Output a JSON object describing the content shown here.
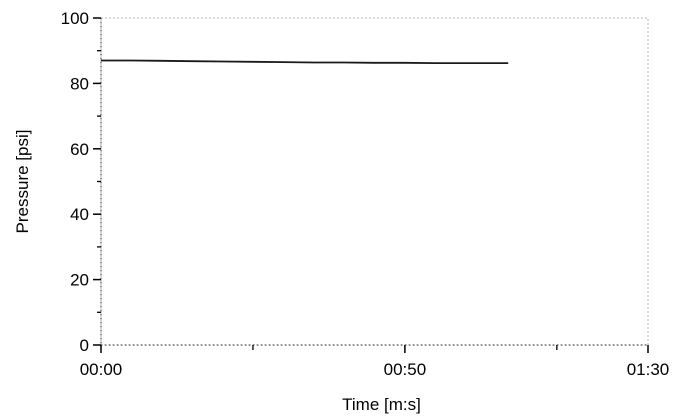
{
  "chart_data": {
    "type": "line",
    "title": "",
    "xlabel": "Time [m:s]",
    "ylabel": "Pressure [psi]",
    "xlim": [
      0,
      90
    ],
    "ylim": [
      0,
      100
    ],
    "x_ticks": [
      {
        "value": 0,
        "label": "00:00"
      },
      {
        "value": 50,
        "label": "00:50"
      },
      {
        "value": 90,
        "label": "01:30"
      }
    ],
    "x_minor_ticks": [
      25,
      75
    ],
    "y_ticks": [
      {
        "value": 0,
        "label": "0"
      },
      {
        "value": 20,
        "label": "20"
      },
      {
        "value": 40,
        "label": "40"
      },
      {
        "value": 60,
        "label": "60"
      },
      {
        "value": 80,
        "label": "80"
      },
      {
        "value": 100,
        "label": "100"
      }
    ],
    "y_minor_ticks": [
      10,
      30,
      50,
      70,
      90
    ],
    "grid": false,
    "legend": "none",
    "series": [
      {
        "color": "#1a1a1a",
        "x": [
          0,
          5,
          10,
          15,
          20,
          25,
          30,
          35,
          40,
          45,
          50,
          55,
          60,
          67
        ],
        "y": [
          87.0,
          87.0,
          86.9,
          86.8,
          86.7,
          86.6,
          86.5,
          86.4,
          86.4,
          86.3,
          86.3,
          86.2,
          86.2,
          86.2
        ]
      }
    ]
  }
}
